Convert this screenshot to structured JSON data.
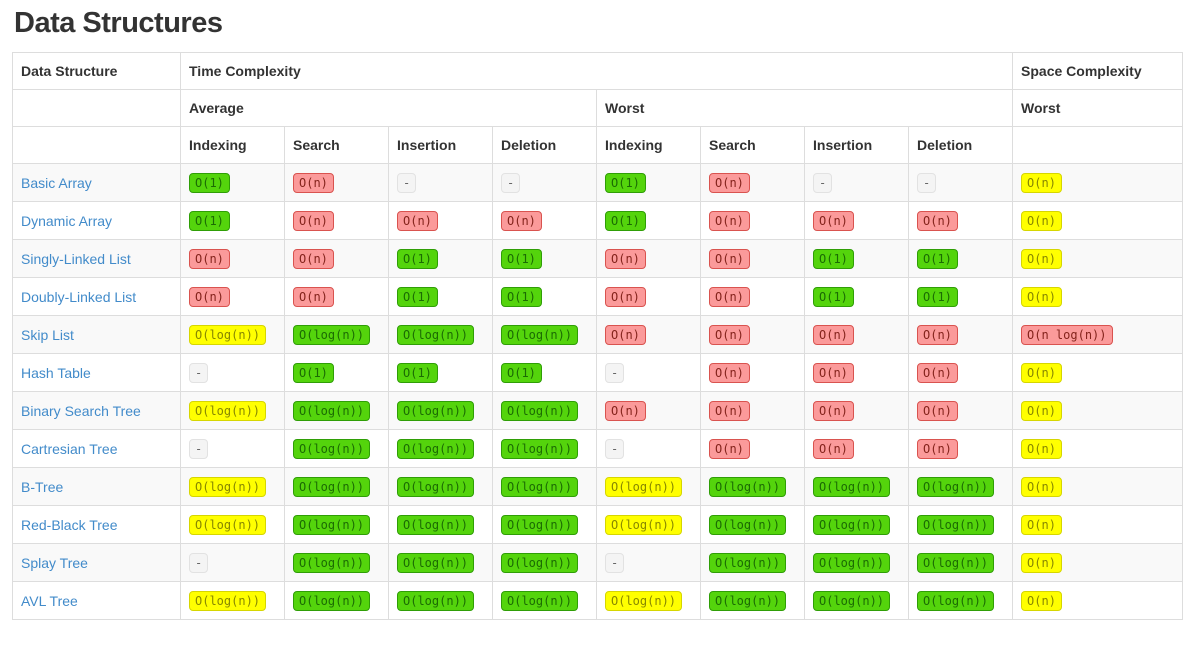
{
  "page_title": "Data Structures",
  "theme": {
    "green-bg": "#54d40c",
    "green-border": "#2f9e06",
    "green-text": "#1b6b03",
    "red-bg": "#fb9a9a",
    "red-border": "#d9534f",
    "red-text": "#84231c",
    "yellow-bg": "#ffff00",
    "yellow-border": "#d6d600",
    "yellow-text": "#878700",
    "gray-bg": "#f4f4f4",
    "gray-border": "#e2e2e2",
    "gray-text": "#666666",
    "link": "#428bca",
    "border": "#dddddd",
    "stripe": "#f9f9f9",
    "heading": "#333333"
  },
  "table": {
    "headers": {
      "data_structure": "Data Structure",
      "time_complexity": "Time Complexity",
      "space_complexity": "Space Complexity",
      "average": "Average",
      "worst": "Worst",
      "space_worst": "Worst",
      "sub": [
        "Indexing",
        "Search",
        "Insertion",
        "Deletion",
        "Indexing",
        "Search",
        "Insertion",
        "Deletion"
      ]
    },
    "rows": [
      {
        "name": "Basic Array",
        "cells": [
          {
            "text": "O(1)",
            "color": "green"
          },
          {
            "text": "O(n)",
            "color": "red"
          },
          {
            "text": "-",
            "color": "gray"
          },
          {
            "text": "-",
            "color": "gray"
          },
          {
            "text": "O(1)",
            "color": "green"
          },
          {
            "text": "O(n)",
            "color": "red"
          },
          {
            "text": "-",
            "color": "gray"
          },
          {
            "text": "-",
            "color": "gray"
          },
          {
            "text": "O(n)",
            "color": "yellow"
          }
        ]
      },
      {
        "name": "Dynamic Array",
        "cells": [
          {
            "text": "O(1)",
            "color": "green"
          },
          {
            "text": "O(n)",
            "color": "red"
          },
          {
            "text": "O(n)",
            "color": "red"
          },
          {
            "text": "O(n)",
            "color": "red"
          },
          {
            "text": "O(1)",
            "color": "green"
          },
          {
            "text": "O(n)",
            "color": "red"
          },
          {
            "text": "O(n)",
            "color": "red"
          },
          {
            "text": "O(n)",
            "color": "red"
          },
          {
            "text": "O(n)",
            "color": "yellow"
          }
        ]
      },
      {
        "name": "Singly-Linked List",
        "cells": [
          {
            "text": "O(n)",
            "color": "red"
          },
          {
            "text": "O(n)",
            "color": "red"
          },
          {
            "text": "O(1)",
            "color": "green"
          },
          {
            "text": "O(1)",
            "color": "green"
          },
          {
            "text": "O(n)",
            "color": "red"
          },
          {
            "text": "O(n)",
            "color": "red"
          },
          {
            "text": "O(1)",
            "color": "green"
          },
          {
            "text": "O(1)",
            "color": "green"
          },
          {
            "text": "O(n)",
            "color": "yellow"
          }
        ]
      },
      {
        "name": "Doubly-Linked List",
        "cells": [
          {
            "text": "O(n)",
            "color": "red"
          },
          {
            "text": "O(n)",
            "color": "red"
          },
          {
            "text": "O(1)",
            "color": "green"
          },
          {
            "text": "O(1)",
            "color": "green"
          },
          {
            "text": "O(n)",
            "color": "red"
          },
          {
            "text": "O(n)",
            "color": "red"
          },
          {
            "text": "O(1)",
            "color": "green"
          },
          {
            "text": "O(1)",
            "color": "green"
          },
          {
            "text": "O(n)",
            "color": "yellow"
          }
        ]
      },
      {
        "name": "Skip List",
        "cells": [
          {
            "text": "O(log(n))",
            "color": "yellow"
          },
          {
            "text": "O(log(n))",
            "color": "green"
          },
          {
            "text": "O(log(n))",
            "color": "green"
          },
          {
            "text": "O(log(n))",
            "color": "green"
          },
          {
            "text": "O(n)",
            "color": "red"
          },
          {
            "text": "O(n)",
            "color": "red"
          },
          {
            "text": "O(n)",
            "color": "red"
          },
          {
            "text": "O(n)",
            "color": "red"
          },
          {
            "text": "O(n log(n))",
            "color": "red"
          }
        ]
      },
      {
        "name": "Hash Table",
        "cells": [
          {
            "text": "-",
            "color": "gray"
          },
          {
            "text": "O(1)",
            "color": "green"
          },
          {
            "text": "O(1)",
            "color": "green"
          },
          {
            "text": "O(1)",
            "color": "green"
          },
          {
            "text": "-",
            "color": "gray"
          },
          {
            "text": "O(n)",
            "color": "red"
          },
          {
            "text": "O(n)",
            "color": "red"
          },
          {
            "text": "O(n)",
            "color": "red"
          },
          {
            "text": "O(n)",
            "color": "yellow"
          }
        ]
      },
      {
        "name": "Binary Search Tree",
        "cells": [
          {
            "text": "O(log(n))",
            "color": "yellow"
          },
          {
            "text": "O(log(n))",
            "color": "green"
          },
          {
            "text": "O(log(n))",
            "color": "green"
          },
          {
            "text": "O(log(n))",
            "color": "green"
          },
          {
            "text": "O(n)",
            "color": "red"
          },
          {
            "text": "O(n)",
            "color": "red"
          },
          {
            "text": "O(n)",
            "color": "red"
          },
          {
            "text": "O(n)",
            "color": "red"
          },
          {
            "text": "O(n)",
            "color": "yellow"
          }
        ]
      },
      {
        "name": "Cartresian Tree",
        "cells": [
          {
            "text": "-",
            "color": "gray"
          },
          {
            "text": "O(log(n))",
            "color": "green"
          },
          {
            "text": "O(log(n))",
            "color": "green"
          },
          {
            "text": "O(log(n))",
            "color": "green"
          },
          {
            "text": "-",
            "color": "gray"
          },
          {
            "text": "O(n)",
            "color": "red"
          },
          {
            "text": "O(n)",
            "color": "red"
          },
          {
            "text": "O(n)",
            "color": "red"
          },
          {
            "text": "O(n)",
            "color": "yellow"
          }
        ]
      },
      {
        "name": "B-Tree",
        "cells": [
          {
            "text": "O(log(n))",
            "color": "yellow"
          },
          {
            "text": "O(log(n))",
            "color": "green"
          },
          {
            "text": "O(log(n))",
            "color": "green"
          },
          {
            "text": "O(log(n))",
            "color": "green"
          },
          {
            "text": "O(log(n))",
            "color": "yellow"
          },
          {
            "text": "O(log(n))",
            "color": "green"
          },
          {
            "text": "O(log(n))",
            "color": "green"
          },
          {
            "text": "O(log(n))",
            "color": "green"
          },
          {
            "text": "O(n)",
            "color": "yellow"
          }
        ]
      },
      {
        "name": "Red-Black Tree",
        "cells": [
          {
            "text": "O(log(n))",
            "color": "yellow"
          },
          {
            "text": "O(log(n))",
            "color": "green"
          },
          {
            "text": "O(log(n))",
            "color": "green"
          },
          {
            "text": "O(log(n))",
            "color": "green"
          },
          {
            "text": "O(log(n))",
            "color": "yellow"
          },
          {
            "text": "O(log(n))",
            "color": "green"
          },
          {
            "text": "O(log(n))",
            "color": "green"
          },
          {
            "text": "O(log(n))",
            "color": "green"
          },
          {
            "text": "O(n)",
            "color": "yellow"
          }
        ]
      },
      {
        "name": "Splay Tree",
        "cells": [
          {
            "text": "-",
            "color": "gray"
          },
          {
            "text": "O(log(n))",
            "color": "green"
          },
          {
            "text": "O(log(n))",
            "color": "green"
          },
          {
            "text": "O(log(n))",
            "color": "green"
          },
          {
            "text": "-",
            "color": "gray"
          },
          {
            "text": "O(log(n))",
            "color": "green"
          },
          {
            "text": "O(log(n))",
            "color": "green"
          },
          {
            "text": "O(log(n))",
            "color": "green"
          },
          {
            "text": "O(n)",
            "color": "yellow"
          }
        ]
      },
      {
        "name": "AVL Tree",
        "cells": [
          {
            "text": "O(log(n))",
            "color": "yellow"
          },
          {
            "text": "O(log(n))",
            "color": "green"
          },
          {
            "text": "O(log(n))",
            "color": "green"
          },
          {
            "text": "O(log(n))",
            "color": "green"
          },
          {
            "text": "O(log(n))",
            "color": "yellow"
          },
          {
            "text": "O(log(n))",
            "color": "green"
          },
          {
            "text": "O(log(n))",
            "color": "green"
          },
          {
            "text": "O(log(n))",
            "color": "green"
          },
          {
            "text": "O(n)",
            "color": "yellow"
          }
        ]
      }
    ]
  }
}
